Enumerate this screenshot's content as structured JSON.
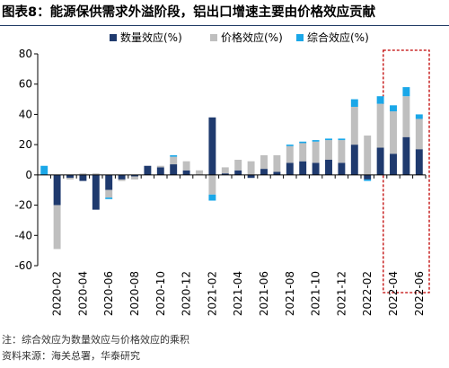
{
  "figure": {
    "title": "图表8：能源保供需求外溢阶段，铝出口增速主要由价格效应贡献",
    "note": "注：综合效应为数量效应与价格效应的乘积",
    "source": "资料来源：海关总署，华泰研究"
  },
  "chart_data": {
    "type": "bar",
    "stacked": true,
    "categories": [
      "2020-01",
      "2020-02",
      "2020-03",
      "2020-04",
      "2020-05",
      "2020-06",
      "2020-07",
      "2020-08",
      "2020-09",
      "2020-10",
      "2020-11",
      "2020-12",
      "2021-01",
      "2021-02",
      "2021-03",
      "2021-04",
      "2021-05",
      "2021-06",
      "2021-07",
      "2021-08",
      "2021-09",
      "2021-10",
      "2021-11",
      "2021-12",
      "2022-01",
      "2022-02",
      "2022-03",
      "2022-04",
      "2022-05",
      "2022-06"
    ],
    "tick_labels": [
      "2020-02",
      "2020-04",
      "2020-06",
      "2020-08",
      "2020-10",
      "2020-12",
      "2021-02",
      "2021-04",
      "2021-06",
      "2021-08",
      "2021-10",
      "2021-12",
      "2022-02",
      "2022-04",
      "2022-06"
    ],
    "series": [
      {
        "name": "数量效应(%)",
        "color": "#1f3a6e",
        "values": [
          0,
          -20,
          -2,
          -4,
          -23,
          -10,
          -3,
          -1,
          6,
          5,
          7,
          3,
          0,
          38,
          1,
          3,
          -2,
          4,
          2,
          8,
          9,
          8,
          10,
          8,
          20,
          -3,
          18,
          14,
          25,
          17
        ]
      },
      {
        "name": "价格效应(%)",
        "color": "#bfbfbf",
        "values": [
          0,
          -29,
          -1,
          1,
          1,
          -5,
          -1,
          -2,
          0,
          1,
          5,
          6,
          3,
          -13,
          4,
          7,
          9,
          9,
          11,
          11,
          12,
          14,
          13,
          15,
          25,
          26,
          29,
          28,
          27,
          20
        ]
      },
      {
        "name": "综合效应(%)",
        "color": "#1aa7e8",
        "values": [
          6,
          0,
          0,
          0,
          0,
          -1,
          0,
          0,
          0,
          0,
          1,
          0,
          0,
          -4,
          0,
          0,
          0,
          0,
          0,
          1,
          1,
          1,
          1,
          1,
          5,
          -1,
          5,
          4,
          6,
          3
        ]
      }
    ],
    "xlabel": "",
    "ylabel": "",
    "ylim": [
      -60,
      80
    ],
    "yticks": [
      -60,
      -40,
      -20,
      0,
      20,
      40,
      60,
      80
    ],
    "grid": false,
    "legend": "top",
    "highlight": {
      "from": "2022-04",
      "to": "2022-06",
      "style": "dashed-red-box",
      "color": "#c00000"
    }
  }
}
